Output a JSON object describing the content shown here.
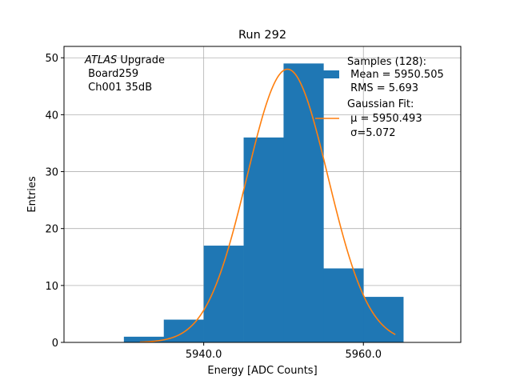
{
  "chart_data": {
    "type": "bar",
    "title": "Run 292",
    "xlabel": "Energy [ADC Counts]",
    "ylabel": "Entries",
    "xlim": [
      5922.5,
      5972.2
    ],
    "ylim": [
      0,
      52
    ],
    "grid": true,
    "x_ticks": [
      5940,
      5960
    ],
    "x_tick_labels": [
      "5940.0",
      "5960.0"
    ],
    "y_ticks": [
      0,
      10,
      20,
      30,
      40,
      50
    ],
    "y_tick_labels": [
      "0",
      "10",
      "20",
      "30",
      "40",
      "50"
    ],
    "bin_width": 5,
    "histogram": {
      "name": "Samples (128)",
      "bin_edges": [
        5930,
        5935,
        5940,
        5945,
        5950,
        5955,
        5960,
        5965
      ],
      "values": [
        1,
        4,
        17,
        36,
        49,
        13,
        8
      ],
      "color": "#1f77b4"
    },
    "fit": {
      "name": "Gaussian Fit",
      "mu": 5950.493,
      "sigma": 5.072,
      "peak": 48,
      "x_range": [
        5932.0,
        5964.0
      ],
      "color": "#ff7f0e"
    },
    "annotation": {
      "italic": "ATLAS",
      "rest": " Upgrade",
      "lines": [
        " Board259",
        " Ch001 35dB"
      ]
    },
    "legend": {
      "placement": "top-right",
      "entries": [
        {
          "kind": "patch",
          "lines": [
            "Samples (128):",
            " Mean = 5950.505",
            " RMS = 5.693"
          ]
        },
        {
          "kind": "line",
          "lines": [
            "Gaussian Fit:",
            " μ = 5950.493",
            " σ=5.072"
          ]
        }
      ]
    }
  }
}
